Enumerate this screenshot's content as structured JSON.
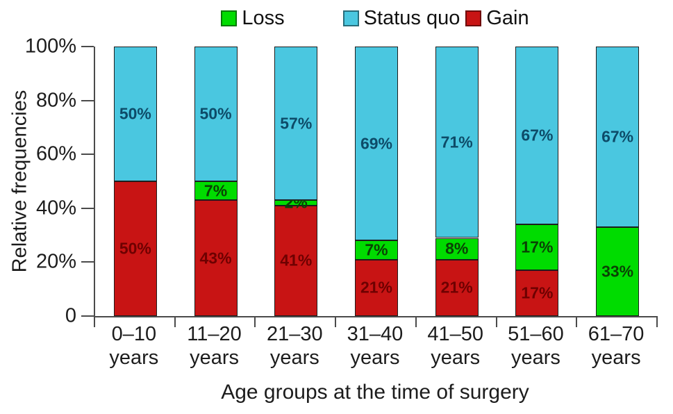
{
  "chart_data": {
    "type": "bar",
    "stacked": true,
    "title": "",
    "xlabel": "Age groups at the time of surgery",
    "ylabel": "Relative frequencies",
    "ylim": [
      0,
      100
    ],
    "yticks": [
      "0",
      "20%",
      "40%",
      "60%",
      "80%",
      "100%"
    ],
    "grid": false,
    "legend_position": "top-center",
    "legend_order": [
      "Loss",
      "Status quo",
      "Gain"
    ],
    "categories": [
      "0–10",
      "11–20",
      "21–30",
      "31–40",
      "41–50",
      "51–60",
      "61–70"
    ],
    "category_line2": "years",
    "series": [
      {
        "name": "Gain",
        "color": "#c81414",
        "label_color": "#6e0101",
        "values": [
          50,
          43,
          41,
          21,
          21,
          17,
          0
        ]
      },
      {
        "name": "Loss",
        "color": "#00dc00",
        "label_color": "#0a4204",
        "values": [
          0,
          7,
          2,
          7,
          8,
          17,
          33
        ]
      },
      {
        "name": "Status quo",
        "color": "#4ac7e0",
        "label_color": "#0d4b68",
        "values": [
          50,
          50,
          57,
          69,
          71,
          67,
          67
        ]
      }
    ],
    "value_suffix": "%"
  },
  "colors": {
    "axis": "#4a4a4a",
    "text": "#1c1c1c",
    "background": "#ffffff"
  }
}
